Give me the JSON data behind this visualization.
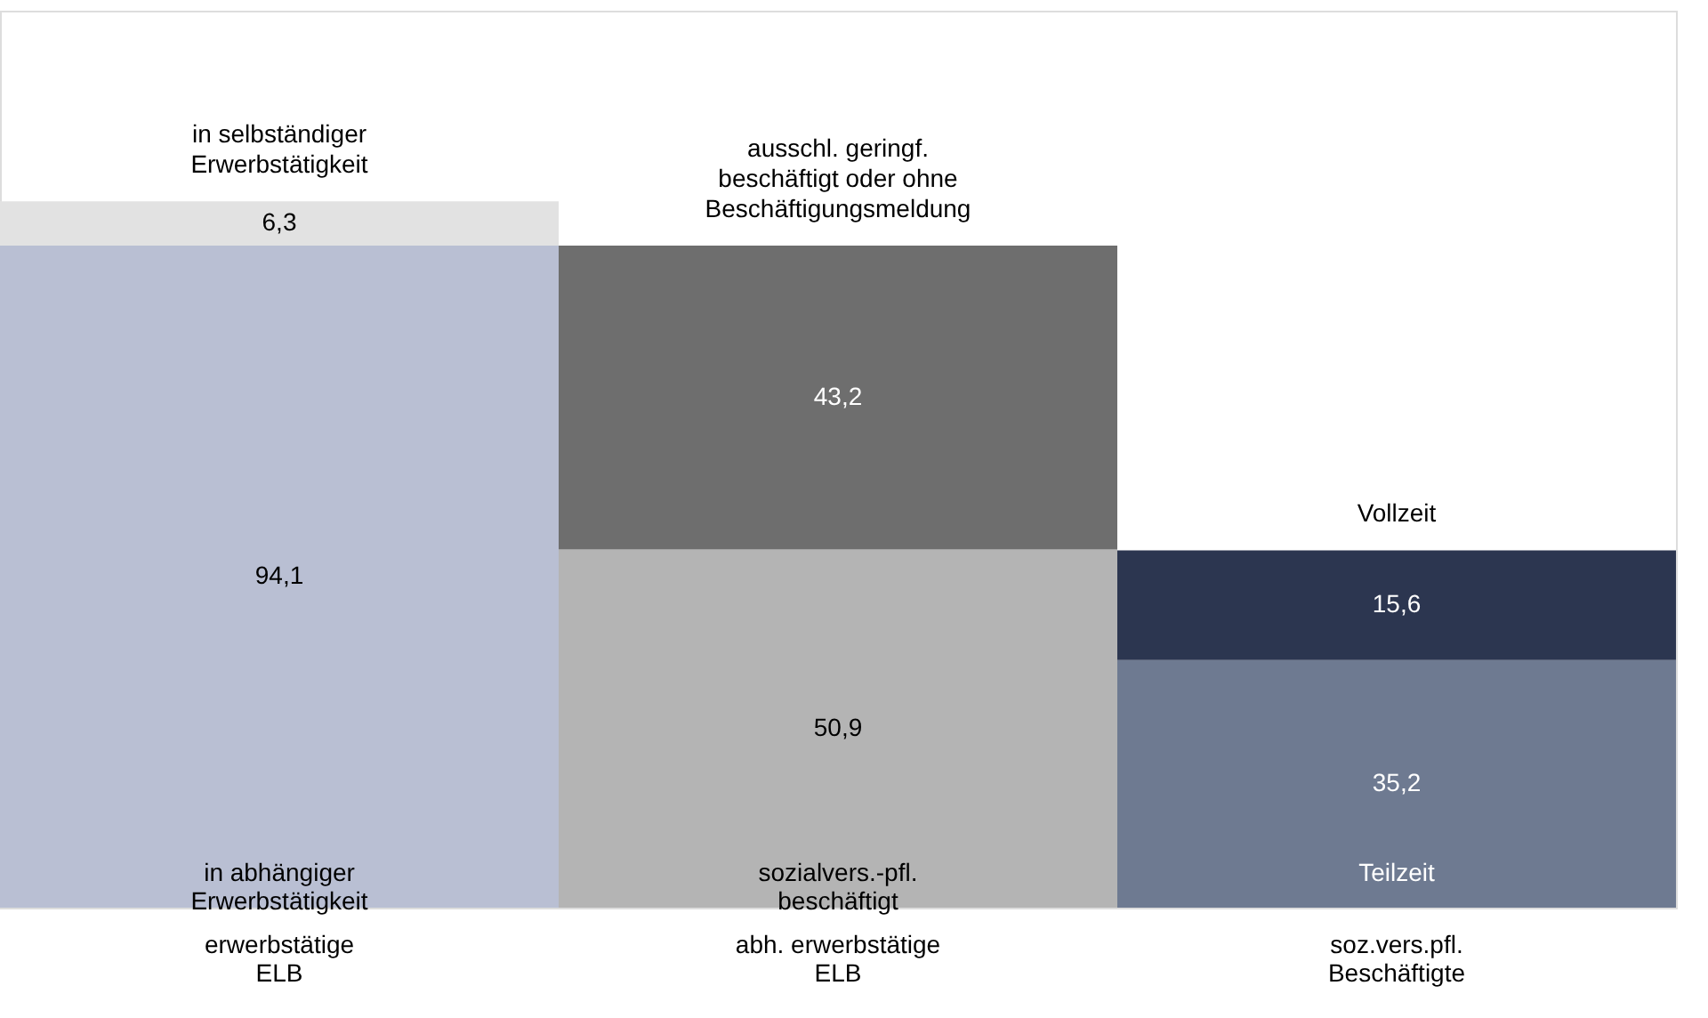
{
  "chart_data": {
    "type": "bar",
    "stacked": true,
    "grid": false,
    "categories": [
      "erwerbstätige\nELB",
      "abh. erwerbstätige\nELB",
      "soz.vers.pfl.\nBeschäftigte"
    ],
    "series": [
      {
        "name": "in abhängiger\nErwerbstätigkeit",
        "color": "#b9bfd3",
        "values": [
          94.1,
          null,
          null
        ],
        "value_labels": [
          "94,1",
          null,
          null
        ]
      },
      {
        "name": "in selbständiger\nErwerbstätigkeit",
        "color": "#e2e2e2",
        "values": [
          6.3,
          null,
          null
        ],
        "value_labels": [
          "6,3",
          null,
          null
        ]
      },
      {
        "name": "sozialvers.-pfl.\nbeschäftigt",
        "color": "#b4b4b4",
        "values": [
          null,
          50.9,
          null
        ],
        "value_labels": [
          null,
          "50,9",
          null
        ]
      },
      {
        "name": "ausschl. geringf.\nbeschäftigt oder ohne\nBeschäftigungsmeldung",
        "color": "#6e6e6e",
        "values": [
          null,
          43.2,
          null
        ],
        "value_labels": [
          null,
          "43,2",
          null
        ]
      },
      {
        "name": "Teilzeit",
        "color": "#6e7a91",
        "values": [
          null,
          null,
          35.2
        ],
        "value_labels": [
          null,
          null,
          "35,2"
        ]
      },
      {
        "name": "Vollzeit",
        "color": "#2c3650",
        "values": [
          null,
          null,
          15.6
        ],
        "value_labels": [
          null,
          null,
          "15,6"
        ]
      }
    ]
  }
}
